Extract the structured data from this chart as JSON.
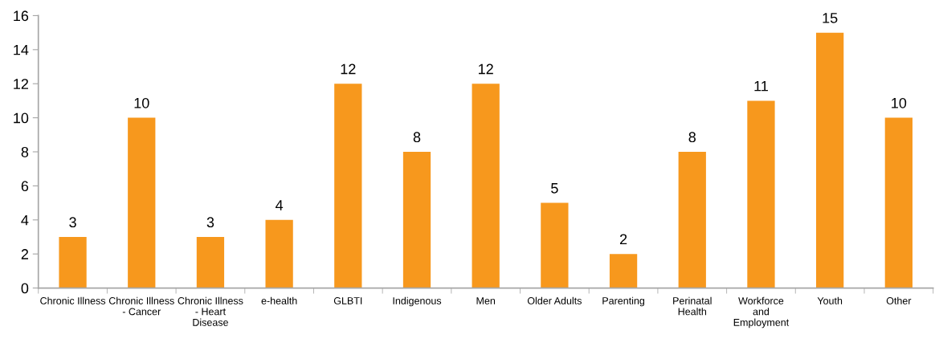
{
  "chart_data": {
    "type": "bar",
    "categories": [
      "Chronic Illness",
      "Chronic Illness\n- Cancer",
      "Chronic Illness\n- Heart\nDisease",
      "e-health",
      "GLBTI",
      "Indigenous",
      "Men",
      "Older Adults",
      "Parenting",
      "Perinatal\nHealth",
      "Workforce\nand\nEmployment",
      "Youth",
      "Other"
    ],
    "values": [
      3,
      10,
      3,
      4,
      12,
      8,
      12,
      5,
      2,
      8,
      11,
      15,
      10
    ],
    "color": "#f7981d",
    "ylim": [
      0,
      16
    ],
    "yticks": [
      0,
      2,
      4,
      6,
      8,
      10,
      12,
      14,
      16
    ],
    "grid": false,
    "data_labels": true,
    "legend": false
  }
}
